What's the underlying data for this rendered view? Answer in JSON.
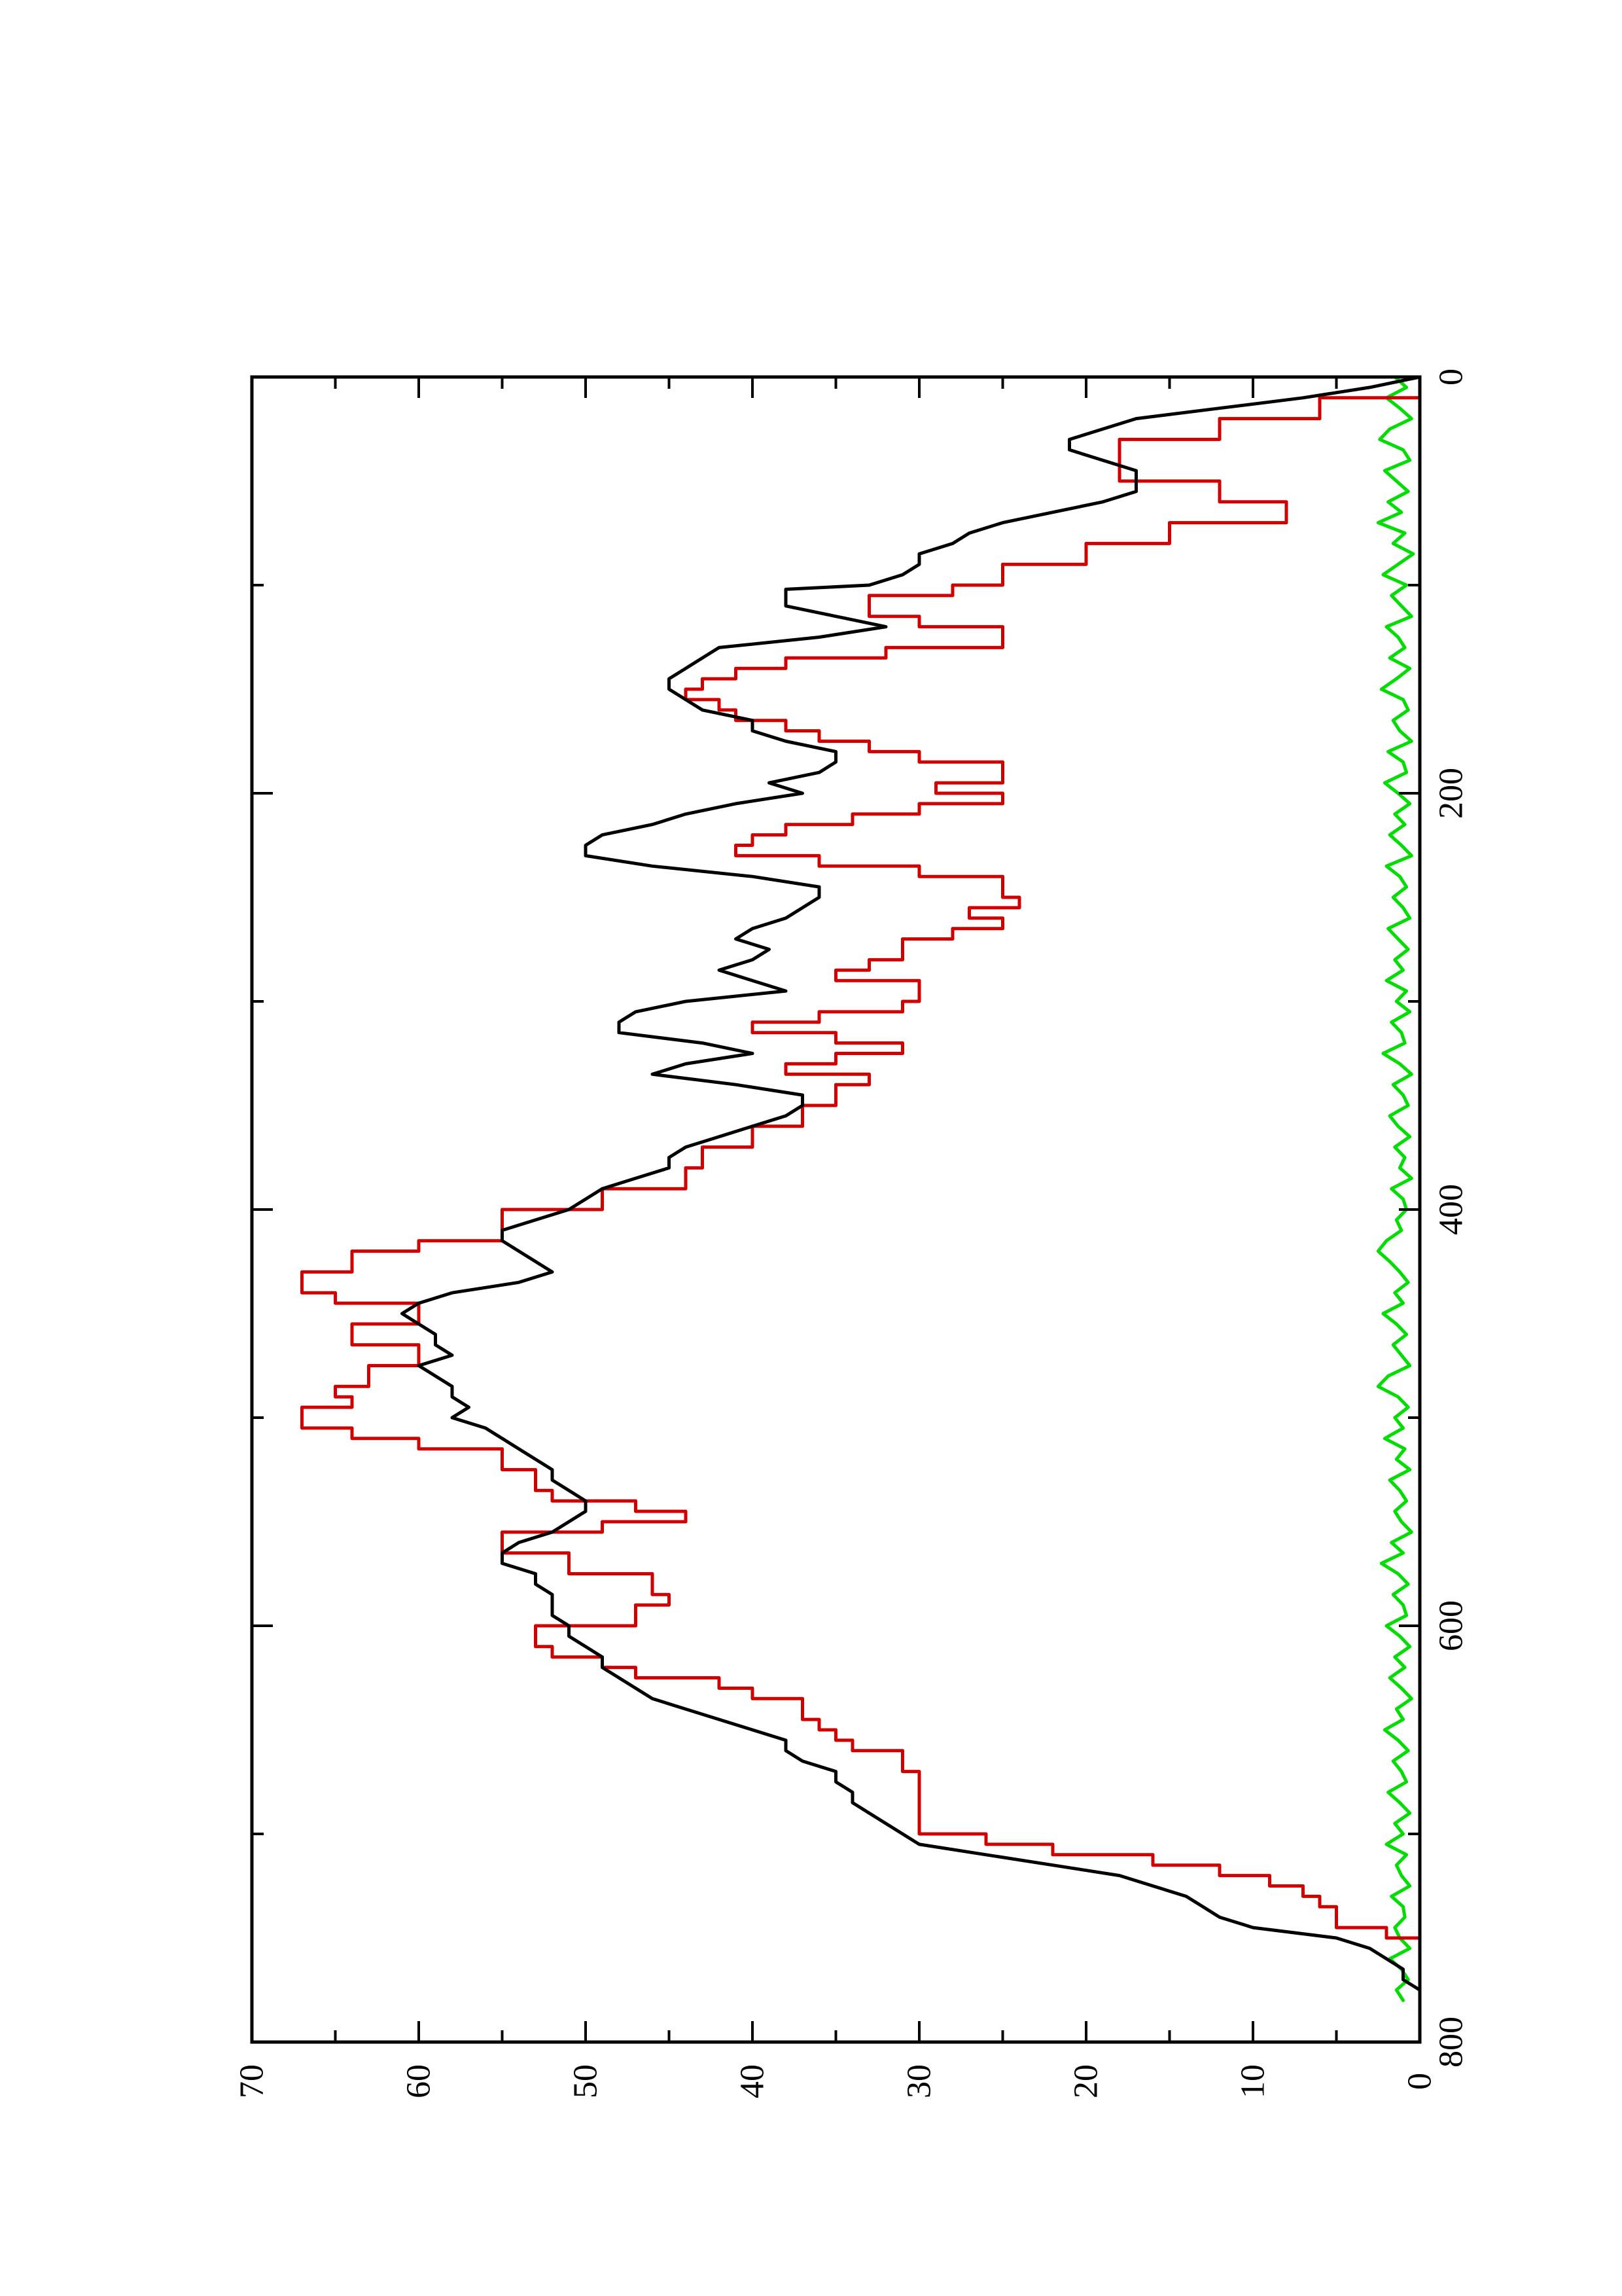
{
  "chart_data": {
    "type": "line",
    "orientation": "rotated-90-counterclockwise",
    "title": "",
    "xlabel": "",
    "ylabel": "",
    "xlim": [
      0,
      800
    ],
    "ylim": [
      0,
      70
    ],
    "x_ticks": [
      0,
      200,
      400,
      600,
      800
    ],
    "x_tick_labels": [
      "0",
      "200",
      "400",
      "600",
      "800"
    ],
    "x_minor_ticks": [
      100,
      300,
      500,
      700
    ],
    "y_ticks": [
      0,
      10,
      20,
      30,
      40,
      50,
      60,
      70
    ],
    "y_tick_labels": [
      "0",
      "10",
      "20",
      "30",
      "40",
      "50",
      "60",
      "70"
    ],
    "y_minor_ticks": [
      5,
      15,
      25,
      35,
      45,
      55,
      65
    ],
    "grid": false,
    "legend": "none",
    "series": [
      {
        "color": "#000000",
        "style": "smooth",
        "x": [
          0,
          5,
          10,
          15,
          20,
          25,
          30,
          35,
          40,
          45,
          50,
          55,
          60,
          65,
          70,
          75,
          80,
          85,
          90,
          95,
          100,
          102,
          105,
          110,
          115,
          120,
          125,
          130,
          135,
          140,
          145,
          150,
          155,
          160,
          165,
          170,
          175,
          180,
          185,
          190,
          195,
          200,
          205,
          210,
          215,
          220,
          225,
          230,
          235,
          240,
          245,
          250,
          255,
          260,
          265,
          270,
          275,
          280,
          285,
          290,
          295,
          300,
          305,
          310,
          315,
          320,
          325,
          330,
          335,
          340,
          345,
          350,
          355,
          360,
          365,
          370,
          375,
          380,
          385,
          390,
          395,
          400,
          405,
          410,
          415,
          420,
          425,
          430,
          435,
          440,
          445,
          450,
          455,
          460,
          465,
          470,
          475,
          480,
          485,
          490,
          495,
          500,
          505,
          510,
          515,
          520,
          525,
          530,
          535,
          540,
          545,
          550,
          555,
          560,
          565,
          570,
          575,
          580,
          585,
          590,
          595,
          600,
          605,
          610,
          615,
          620,
          625,
          630,
          635,
          640,
          645,
          650,
          655,
          660,
          665,
          670,
          675,
          680,
          685,
          690,
          695,
          700,
          705,
          710,
          715,
          720,
          725,
          730,
          735,
          740,
          745,
          750,
          755,
          760,
          765,
          770,
          775
        ],
        "y": [
          0,
          3,
          7,
          12,
          17,
          19,
          21,
          21,
          19,
          17,
          17,
          17,
          19,
          22,
          25,
          27,
          28,
          30,
          30,
          31,
          33,
          38,
          38,
          38,
          35,
          32,
          36,
          42,
          43,
          44,
          45,
          45,
          44,
          43,
          40,
          40,
          38,
          35,
          35,
          36,
          39,
          37,
          41,
          44,
          46,
          49,
          50,
          50,
          46,
          40,
          36,
          36,
          37,
          38,
          40,
          41,
          39,
          40,
          42,
          40,
          38,
          44,
          47,
          48,
          48,
          43,
          40,
          44,
          46,
          41,
          37,
          37,
          38,
          40,
          42,
          44,
          45,
          45,
          47,
          49,
          50,
          51,
          53,
          55,
          55,
          54,
          53,
          52,
          54,
          58,
          60,
          61,
          60,
          59,
          59,
          58,
          60,
          59,
          58,
          58,
          57,
          58,
          56,
          55,
          54,
          53,
          52,
          52,
          51,
          50,
          50,
          51,
          52,
          54,
          55,
          55,
          53,
          53,
          52,
          52,
          52,
          51,
          51,
          50,
          49,
          49,
          48,
          47,
          46,
          44,
          42,
          40,
          38,
          38,
          37,
          35,
          35,
          34,
          34,
          33,
          32,
          31,
          30,
          26,
          22,
          18,
          16,
          14,
          13,
          12,
          10,
          5,
          3,
          2,
          1,
          1,
          0
        ]
      },
      {
        "color": "#d10000",
        "style": "step",
        "x": [
          0,
          10,
          20,
          30,
          40,
          50,
          60,
          70,
          80,
          90,
          100,
          105,
          110,
          115,
          120,
          125,
          130,
          135,
          140,
          145,
          150,
          155,
          160,
          165,
          170,
          175,
          180,
          185,
          190,
          195,
          200,
          205,
          210,
          215,
          220,
          225,
          230,
          235,
          240,
          245,
          250,
          255,
          260,
          265,
          270,
          275,
          280,
          285,
          290,
          295,
          300,
          305,
          310,
          315,
          320,
          325,
          330,
          335,
          340,
          345,
          350,
          355,
          360,
          365,
          370,
          375,
          380,
          385,
          390,
          395,
          400,
          405,
          410,
          415,
          420,
          425,
          430,
          435,
          440,
          445,
          450,
          455,
          460,
          465,
          470,
          475,
          480,
          485,
          490,
          495,
          500,
          505,
          510,
          515,
          520,
          525,
          530,
          535,
          540,
          545,
          550,
          555,
          560,
          565,
          570,
          575,
          580,
          585,
          590,
          595,
          600,
          605,
          610,
          615,
          620,
          625,
          630,
          635,
          640,
          645,
          650,
          655,
          660,
          665,
          670,
          675,
          680,
          685,
          690,
          695,
          700,
          705,
          710,
          715,
          720,
          725,
          730,
          735,
          740,
          745,
          750
        ],
        "y": [
          0,
          6,
          12,
          18,
          18,
          12,
          8,
          15,
          20,
          25,
          28,
          33,
          33,
          30,
          25,
          25,
          32,
          38,
          41,
          43,
          44,
          42,
          41,
          38,
          36,
          33,
          30,
          25,
          25,
          29,
          25,
          30,
          34,
          38,
          40,
          41,
          36,
          30,
          25,
          25,
          24,
          27,
          25,
          28,
          31,
          31,
          33,
          35,
          30,
          30,
          31,
          36,
          40,
          35,
          31,
          35,
          38,
          33,
          35,
          35,
          37,
          37,
          40,
          40,
          43,
          43,
          44,
          44,
          49,
          49,
          55,
          55,
          55,
          60,
          64,
          64,
          67,
          67,
          65,
          60,
          60,
          64,
          64,
          60,
          60,
          63,
          63,
          65,
          64,
          67,
          67,
          64,
          60,
          55,
          55,
          53,
          53,
          52,
          47,
          44,
          49,
          55,
          55,
          51,
          51,
          46,
          46,
          45,
          47,
          47,
          53,
          53,
          52,
          49,
          47,
          42,
          40,
          37,
          37,
          36,
          35,
          34,
          31,
          31,
          30,
          30,
          30,
          30,
          30,
          30,
          26,
          22,
          16,
          12,
          9,
          7,
          6,
          5,
          5,
          2,
          0
        ]
      },
      {
        "color": "#00dd00",
        "style": "noise",
        "x": [
          0,
          5,
          10,
          15,
          20,
          25,
          30,
          35,
          40,
          45,
          50,
          55,
          60,
          65,
          70,
          75,
          80,
          85,
          90,
          95,
          100,
          105,
          110,
          115,
          120,
          125,
          130,
          135,
          140,
          145,
          150,
          155,
          160,
          165,
          170,
          175,
          180,
          185,
          190,
          195,
          200,
          205,
          210,
          215,
          220,
          225,
          230,
          235,
          240,
          245,
          250,
          255,
          260,
          265,
          270,
          275,
          280,
          285,
          290,
          295,
          300,
          305,
          310,
          315,
          320,
          325,
          330,
          335,
          340,
          345,
          350,
          355,
          360,
          365,
          370,
          375,
          380,
          385,
          390,
          395,
          400,
          405,
          410,
          415,
          420,
          425,
          430,
          435,
          440,
          445,
          450,
          455,
          460,
          465,
          470,
          475,
          480,
          485,
          490,
          495,
          500,
          505,
          510,
          515,
          520,
          525,
          530,
          535,
          540,
          545,
          550,
          555,
          560,
          565,
          570,
          575,
          580,
          585,
          590,
          595,
          600,
          605,
          610,
          615,
          620,
          625,
          630,
          635,
          640,
          645,
          650,
          655,
          660,
          665,
          670,
          675,
          680,
          685,
          690,
          695,
          700,
          705,
          710,
          715,
          720,
          725,
          730,
          735,
          740,
          745,
          750,
          755,
          760,
          765,
          770,
          775,
          780
        ],
        "y": [
          1.5,
          0.8,
          2.0,
          1.2,
          0.5,
          1.8,
          2.4,
          1.0,
          0.6,
          2.1,
          1.4,
          0.7,
          1.9,
          1.1,
          2.5,
          0.9,
          1.6,
          0.4,
          1.3,
          2.2,
          0.8,
          1.7,
          1.1,
          0.5,
          2.0,
          1.3,
          0.9,
          1.8,
          0.6,
          1.4,
          2.3,
          1.0,
          0.7,
          1.6,
          1.2,
          0.5,
          1.9,
          1.0,
          0.8,
          2.1,
          1.3,
          0.6,
          1.5,
          0.9,
          1.8,
          1.1,
          0.5,
          2.0,
          1.2,
          0.8,
          1.6,
          1.0,
          0.6,
          1.9,
          1.3,
          0.7,
          1.5,
          1.0,
          2.0,
          0.8,
          1.4,
          0.6,
          1.7,
          1.1,
          0.9,
          2.2,
          1.2,
          0.5,
          1.6,
          1.0,
          0.7,
          1.8,
          1.3,
          0.6,
          1.5,
          0.9,
          1.2,
          0.5,
          1.7,
          1.0,
          0.8,
          1.4,
          1.1,
          2.0,
          2.5,
          1.8,
          1.2,
          0.7,
          1.5,
          1.0,
          2.2,
          1.4,
          0.8,
          1.6,
          1.1,
          0.6,
          1.9,
          2.5,
          1.3,
          0.7,
          1.5,
          1.0,
          2.1,
          0.9,
          1.4,
          0.6,
          1.8,
          1.2,
          0.8,
          1.5,
          1.1,
          0.5,
          1.7,
          1.0,
          2.3,
          1.3,
          0.7,
          1.6,
          1.0,
          0.8,
          2.0,
          1.2,
          0.6,
          1.5,
          0.9,
          1.8,
          1.1,
          0.5,
          1.4,
          1.0,
          2.1,
          1.3,
          0.7,
          1.6,
          1.1,
          0.8,
          1.9,
          1.2,
          0.6,
          1.5,
          1.0,
          2.0,
          0.8,
          1.4,
          1.1,
          0.6,
          1.7,
          1.0,
          0.9,
          1.5,
          1.2,
          0.6,
          1.8,
          1.1,
          0.7,
          1.4,
          1.0
        ]
      }
    ]
  }
}
